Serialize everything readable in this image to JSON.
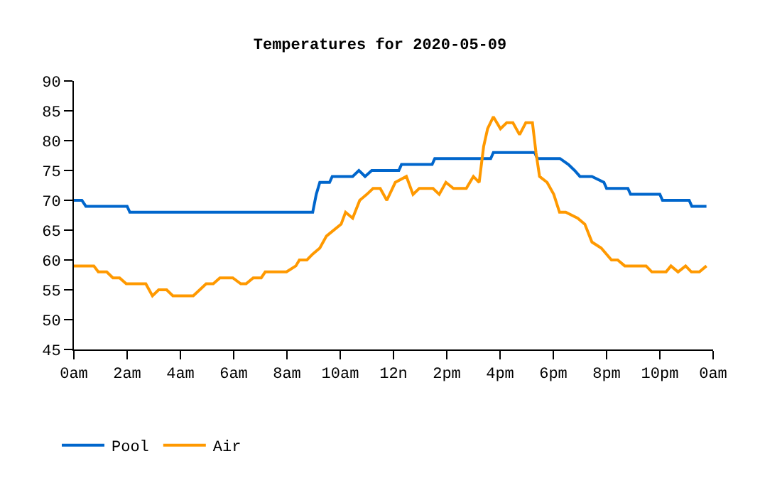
{
  "chart_data": {
    "type": "line",
    "title": "Temperatures for 2020-05-09",
    "xlim": [
      "2020-05-09T00:00",
      "2020-05-10T00:00"
    ],
    "xticks": [
      {
        "value": "2020-05-09T00:00",
        "label": "0am"
      },
      {
        "value": "2020-05-09T02:00",
        "label": "2am"
      },
      {
        "value": "2020-05-09T04:00",
        "label": "4am"
      },
      {
        "value": "2020-05-09T06:00",
        "label": "6am"
      },
      {
        "value": "2020-05-09T08:00",
        "label": "8am"
      },
      {
        "value": "2020-05-09T10:00",
        "label": "10am"
      },
      {
        "value": "2020-05-09T12:00",
        "label": "12n"
      },
      {
        "value": "2020-05-09T14:00",
        "label": "2pm"
      },
      {
        "value": "2020-05-09T16:00",
        "label": "4pm"
      },
      {
        "value": "2020-05-09T18:00",
        "label": "6pm"
      },
      {
        "value": "2020-05-09T20:00",
        "label": "8pm"
      },
      {
        "value": "2020-05-09T22:00",
        "label": "10pm"
      },
      {
        "value": "2020-05-10T00:00",
        "label": "0am"
      }
    ],
    "ylim": [
      45,
      90
    ],
    "yticks": [
      45,
      50,
      55,
      60,
      65,
      70,
      75,
      80,
      85,
      90
    ],
    "grid": false,
    "legend": "bottom left",
    "marker": "none",
    "line_style": "solid",
    "series": [
      {
        "name": "Pool",
        "color": "#0066cc",
        "x": [
          "2020-05-09T00:00",
          "2020-05-09T00:18",
          "2020-05-09T00:27",
          "2020-05-09T02:00",
          "2020-05-09T02:06",
          "2020-05-09T08:58",
          "2020-05-09T09:06",
          "2020-05-09T09:14",
          "2020-05-09T09:36",
          "2020-05-09T09:42",
          "2020-05-09T10:28",
          "2020-05-09T10:42",
          "2020-05-09T10:56",
          "2020-05-09T11:11",
          "2020-05-09T12:12",
          "2020-05-09T12:18",
          "2020-05-09T13:27",
          "2020-05-09T13:33",
          "2020-05-09T15:39",
          "2020-05-09T15:45",
          "2020-05-09T17:18",
          "2020-05-09T17:24",
          "2020-05-09T18:15",
          "2020-05-09T18:34",
          "2020-05-09T18:48",
          "2020-05-09T19:00",
          "2020-05-09T19:27",
          "2020-05-09T19:54",
          "2020-05-09T20:00",
          "2020-05-09T20:48",
          "2020-05-09T20:54",
          "2020-05-09T22:00",
          "2020-05-09T22:06",
          "2020-05-09T23:06",
          "2020-05-09T23:12",
          "2020-05-09T23:45"
        ],
        "values": [
          70,
          70,
          69,
          69,
          68,
          68,
          71,
          73,
          73,
          74,
          74,
          75,
          74,
          75,
          75,
          76,
          76,
          77,
          77,
          78,
          78,
          77,
          77,
          76,
          75,
          74,
          74,
          73,
          72,
          72,
          71,
          71,
          70,
          70,
          69,
          69
        ]
      },
      {
        "name": "Air",
        "color": "#ff9900",
        "x": [
          "2020-05-09T00:00",
          "2020-05-09T00:45",
          "2020-05-09T00:55",
          "2020-05-09T01:14",
          "2020-05-09T01:28",
          "2020-05-09T01:43",
          "2020-05-09T01:58",
          "2020-05-09T02:42",
          "2020-05-09T02:57",
          "2020-05-09T03:11",
          "2020-05-09T03:29",
          "2020-05-09T03:43",
          "2020-05-09T04:29",
          "2020-05-09T04:58",
          "2020-05-09T05:14",
          "2020-05-09T05:29",
          "2020-05-09T05:58",
          "2020-05-09T06:16",
          "2020-05-09T06:28",
          "2020-05-09T06:44",
          "2020-05-09T07:02",
          "2020-05-09T07:11",
          "2020-05-09T07:59",
          "2020-05-09T08:20",
          "2020-05-09T08:28",
          "2020-05-09T08:45",
          "2020-05-09T08:58",
          "2020-05-09T09:14",
          "2020-05-09T09:29",
          "2020-05-09T10:02",
          "2020-05-09T10:12",
          "2020-05-09T10:28",
          "2020-05-09T10:44",
          "2020-05-09T11:00",
          "2020-05-09T11:14",
          "2020-05-09T11:30",
          "2020-05-09T11:45",
          "2020-05-09T12:04",
          "2020-05-09T12:29",
          "2020-05-09T12:44",
          "2020-05-09T12:58",
          "2020-05-09T13:29",
          "2020-05-09T13:43",
          "2020-05-09T13:58",
          "2020-05-09T14:15",
          "2020-05-09T14:44",
          "2020-05-09T15:00",
          "2020-05-09T15:13",
          "2020-05-09T15:23",
          "2020-05-09T15:32",
          "2020-05-09T15:45",
          "2020-05-09T16:01",
          "2020-05-09T16:15",
          "2020-05-09T16:29",
          "2020-05-09T16:44",
          "2020-05-09T16:58",
          "2020-05-09T17:13",
          "2020-05-09T17:21",
          "2020-05-09T17:29",
          "2020-05-09T17:46",
          "2020-05-09T18:01",
          "2020-05-09T18:14",
          "2020-05-09T18:28",
          "2020-05-09T18:55",
          "2020-05-09T19:11",
          "2020-05-09T19:27",
          "2020-05-09T19:48",
          "2020-05-09T20:11",
          "2020-05-09T20:25",
          "2020-05-09T20:41",
          "2020-05-09T21:29",
          "2020-05-09T21:42",
          "2020-05-09T22:14",
          "2020-05-09T22:25",
          "2020-05-09T22:41",
          "2020-05-09T22:58",
          "2020-05-09T23:11",
          "2020-05-09T23:29",
          "2020-05-09T23:45"
        ],
        "values": [
          59,
          59,
          58,
          58,
          57,
          57,
          56,
          56,
          54,
          55,
          55,
          54,
          54,
          56,
          56,
          57,
          57,
          56,
          56,
          57,
          57,
          58,
          58,
          59,
          60,
          60,
          61,
          62,
          64,
          66,
          68,
          67,
          70,
          71,
          72,
          72,
          70,
          73,
          74,
          71,
          72,
          72,
          71,
          73,
          72,
          72,
          74,
          73,
          79,
          82,
          84,
          82,
          83,
          83,
          81,
          83,
          83,
          78,
          74,
          73,
          71,
          68,
          68,
          67,
          66,
          63,
          62,
          60,
          60,
          59,
          59,
          58,
          58,
          59,
          58,
          59,
          58,
          58,
          59
        ]
      }
    ]
  }
}
